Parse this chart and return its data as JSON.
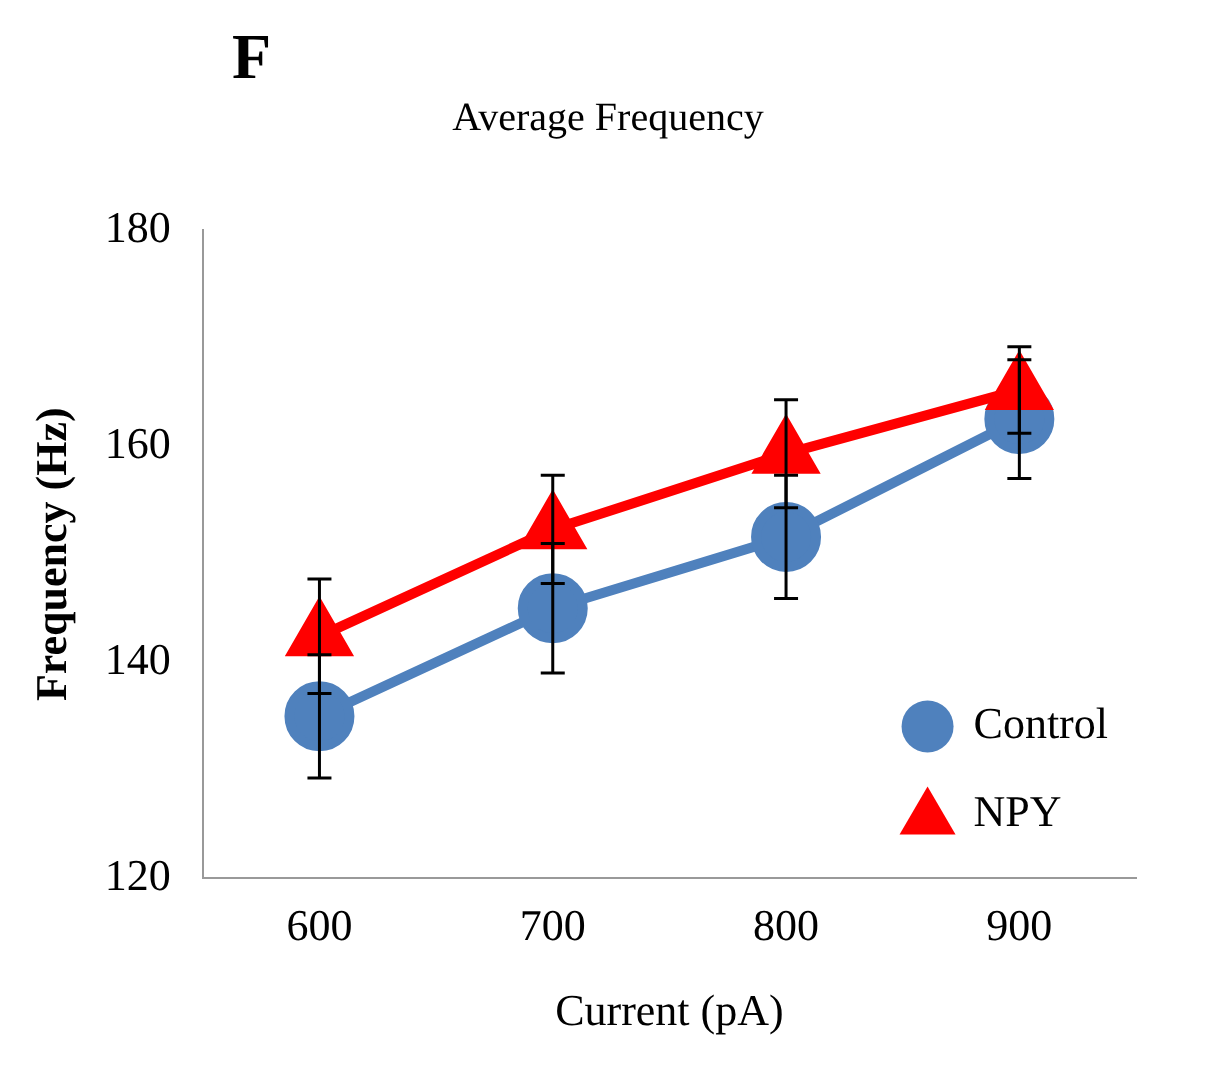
{
  "chart_data": {
    "type": "line",
    "title": "Average Frequency",
    "annotations": [
      "F"
    ],
    "xlabel": "Current (pA)",
    "ylabel": "Frequency (Hz)",
    "categories": [
      "600",
      "700",
      "800",
      "900"
    ],
    "series": [
      {
        "name": "Control",
        "color": "#4f81bd",
        "marker": "circle",
        "values": [
          135,
          145,
          151.6,
          162.5
        ],
        "errors": [
          5.7,
          6,
          5.7,
          5.5
        ]
      },
      {
        "name": "NPY",
        "color": "#ff0000",
        "marker": "triangle",
        "values": [
          142.4,
          152.3,
          159.3,
          165.2
        ],
        "errors": [
          5.3,
          5,
          5,
          4
        ]
      }
    ],
    "ylim": [
      120,
      180
    ],
    "yticks": [
      120,
      140,
      160,
      180
    ],
    "grid": false,
    "legend": "bottom right"
  }
}
